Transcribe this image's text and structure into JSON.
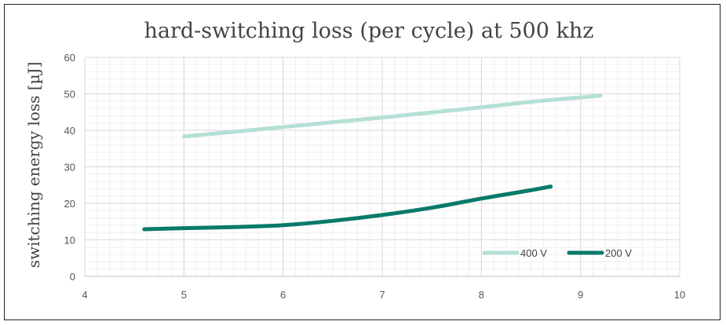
{
  "chart_data": {
    "type": "line",
    "title": "hard-switching loss (per cycle) at 500 khz",
    "xlabel": "",
    "ylabel": "switching energy loss [µJ]",
    "xlim": [
      4,
      10
    ],
    "ylim": [
      0,
      60
    ],
    "xticks": [
      4,
      5,
      6,
      7,
      8,
      9,
      10
    ],
    "yticks": [
      0,
      10,
      20,
      30,
      40,
      50,
      60
    ],
    "grid": true,
    "legend_position": "bottom-right",
    "series": [
      {
        "name": "400 V",
        "color": "#b3e0d6",
        "x": [
          5.0,
          5.5,
          6.0,
          6.5,
          7.0,
          7.5,
          8.0,
          8.5,
          9.0,
          9.2
        ],
        "y": [
          38.3,
          39.6,
          40.9,
          42.2,
          43.5,
          44.9,
          46.3,
          47.8,
          49.0,
          49.5
        ]
      },
      {
        "name": "200 V",
        "color": "#087a6b",
        "x": [
          4.6,
          5.0,
          5.5,
          6.0,
          6.5,
          7.0,
          7.5,
          8.0,
          8.5,
          8.7
        ],
        "y": [
          12.9,
          13.2,
          13.5,
          14.0,
          15.2,
          16.8,
          18.8,
          21.3,
          23.6,
          24.6
        ]
      }
    ]
  }
}
